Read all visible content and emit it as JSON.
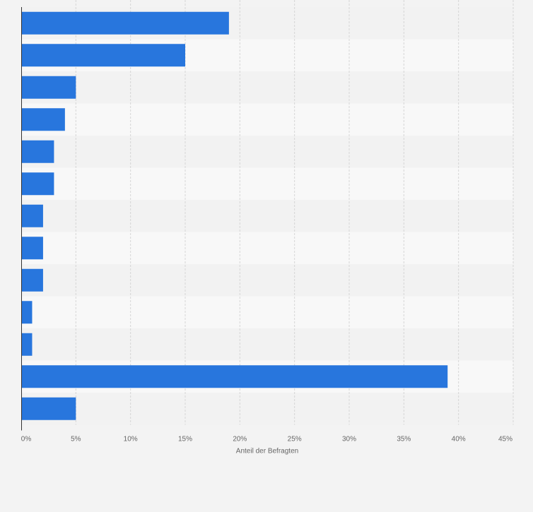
{
  "chart_data": {
    "type": "bar",
    "orientation": "horizontal",
    "categories": [
      "",
      "",
      "",
      "",
      "",
      "",
      "",
      "",
      "",
      "",
      "",
      "",
      ""
    ],
    "values": [
      19,
      15,
      5,
      4,
      3,
      3,
      2,
      2,
      2,
      1,
      1,
      39,
      5
    ],
    "xlabel": "Anteil der Befragten",
    "ylabel": "",
    "xlim": [
      0,
      45
    ],
    "ticks": [
      0,
      5,
      10,
      15,
      20,
      25,
      30,
      35,
      40,
      45
    ],
    "tick_labels": [
      "0%",
      "5%",
      "10%",
      "15%",
      "20%",
      "25%",
      "30%",
      "35%",
      "40%",
      "45%"
    ],
    "grid": true,
    "bar_color": "#2876dd",
    "band_colors": [
      "#f2f2f2",
      "#f8f8f8"
    ]
  }
}
